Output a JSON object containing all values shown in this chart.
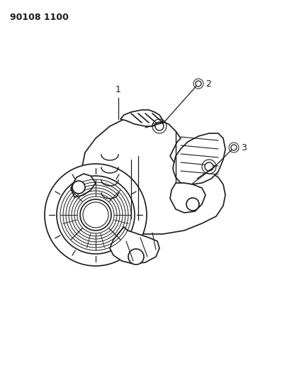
{
  "title": "90108 1100",
  "bg_color": "#ffffff",
  "line_color": "#1a1a1a",
  "title_fontsize": 9,
  "figsize": [
    4.05,
    5.33
  ],
  "dpi": 100,
  "label1": "1",
  "label2": "2",
  "label3": "3"
}
